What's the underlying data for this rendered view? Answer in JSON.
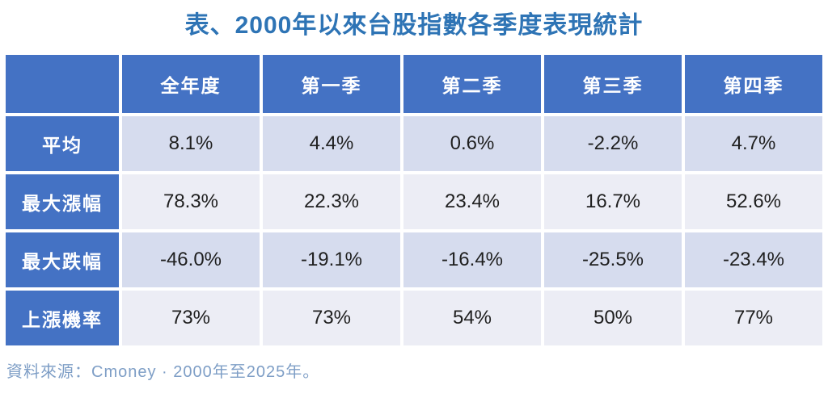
{
  "title": "表、2000年以來台股指數各季度表現統計",
  "table": {
    "columns": [
      "",
      "全年度",
      "第一季",
      "第二季",
      "第三季",
      "第四季"
    ],
    "rows": [
      {
        "label": "平均",
        "values": [
          "8.1%",
          "4.4%",
          "0.6%",
          "-2.2%",
          "4.7%"
        ]
      },
      {
        "label": "最大漲幅",
        "values": [
          "78.3%",
          "22.3%",
          "23.4%",
          "16.7%",
          "52.6%"
        ]
      },
      {
        "label": "最大跌幅",
        "values": [
          "-46.0%",
          "-19.1%",
          "-16.4%",
          "-25.5%",
          "-23.4%"
        ]
      },
      {
        "label": "上漲機率",
        "values": [
          "73%",
          "73%",
          "54%",
          "50%",
          "77%"
        ]
      }
    ]
  },
  "footer": "資料來源：Cmoney · 2000年至2025年。",
  "colors": {
    "header_blue": "#4472C4",
    "row_light_periwinkle": "#D6DCEE",
    "row_pale": "#ECEDF5",
    "title_blue": "#2E74B5",
    "footer_blue_gray": "#7E9EC6",
    "cell_text": "#1F1F1F",
    "header_text": "#FFFFFF"
  },
  "chart_data": {
    "type": "table",
    "title": "表、2000年以來台股指數各季度表現統計",
    "columns": [
      "全年度",
      "第一季",
      "第二季",
      "第三季",
      "第四季"
    ],
    "rows": [
      {
        "label": "平均",
        "values_pct": [
          8.1,
          4.4,
          0.6,
          -2.2,
          4.7
        ]
      },
      {
        "label": "最大漲幅",
        "values_pct": [
          78.3,
          22.3,
          23.4,
          16.7,
          52.6
        ]
      },
      {
        "label": "最大跌幅",
        "values_pct": [
          -46.0,
          -19.1,
          -16.4,
          -25.5,
          -23.4
        ]
      },
      {
        "label": "上漲機率",
        "values_pct": [
          73,
          73,
          54,
          50,
          77
        ]
      }
    ],
    "source": "資料來源：Cmoney · 2000年至2025年。"
  }
}
